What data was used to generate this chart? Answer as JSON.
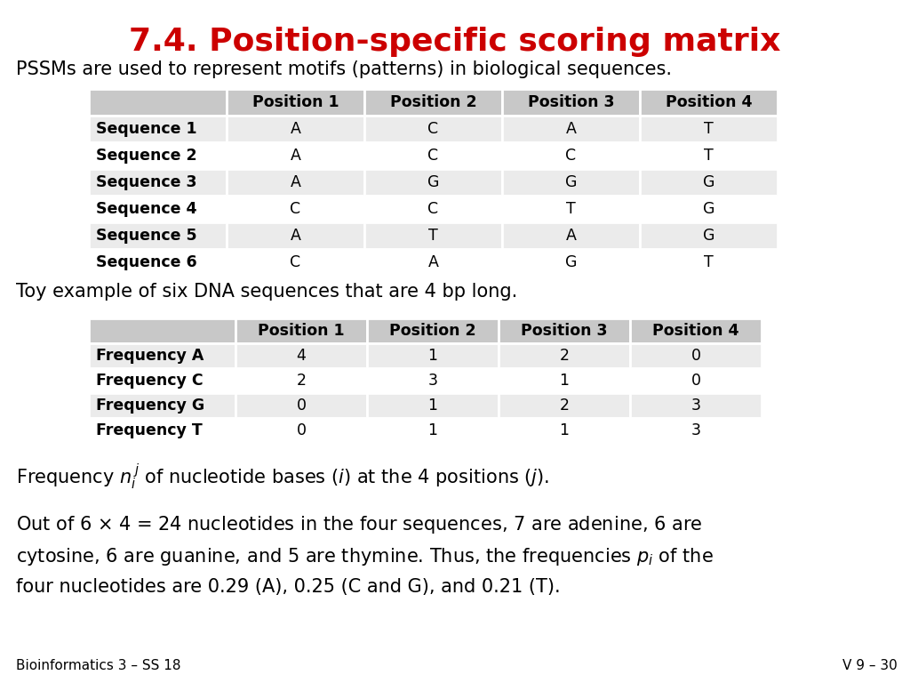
{
  "title": "7.4. Position-specific scoring matrix",
  "title_color": "#cc0000",
  "bg_color": "#ffffff",
  "subtitle": "PSSMs are used to represent motifs (patterns) in biological sequences.",
  "table1_header": [
    "",
    "Position 1",
    "Position 2",
    "Position 3",
    "Position 4"
  ],
  "table1_rows": [
    [
      "Sequence 1",
      "A",
      "C",
      "A",
      "T"
    ],
    [
      "Sequence 2",
      "A",
      "C",
      "C",
      "T"
    ],
    [
      "Sequence 3",
      "A",
      "G",
      "G",
      "G"
    ],
    [
      "Sequence 4",
      "C",
      "C",
      "T",
      "G"
    ],
    [
      "Sequence 5",
      "A",
      "T",
      "A",
      "G"
    ],
    [
      "Sequence 6",
      "C",
      "A",
      "G",
      "T"
    ]
  ],
  "mid_text": "Toy example of six DNA sequences that are 4 bp long.",
  "table2_header": [
    "",
    "Position 1",
    "Position 2",
    "Position 3",
    "Position 4"
  ],
  "table2_rows": [
    [
      "Frequency A",
      "4",
      "1",
      "2",
      "0"
    ],
    [
      "Frequency C",
      "2",
      "3",
      "1",
      "0"
    ],
    [
      "Frequency G",
      "0",
      "1",
      "2",
      "3"
    ],
    [
      "Frequency T",
      "0",
      "1",
      "1",
      "3"
    ]
  ],
  "footer_left": "Bioinformatics 3 – SS 18",
  "footer_right": "V 9 – 30",
  "header_bg": "#c8c8c8",
  "row_bg_odd": "#ebebeb",
  "row_bg_even": "#ffffff",
  "border_color": "#ffffff"
}
